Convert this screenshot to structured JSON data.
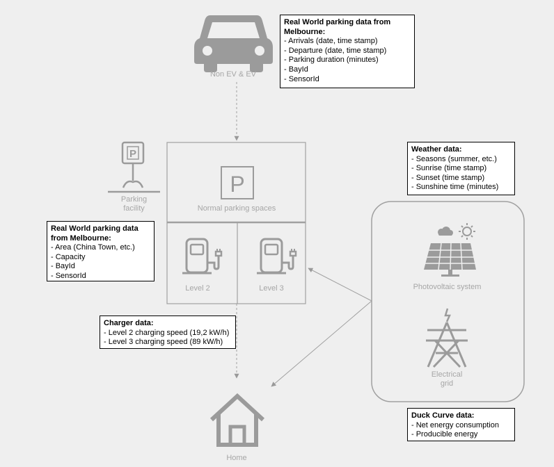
{
  "nodes": {
    "car_label": "Non EV & EV",
    "parking_facility_label": "Parking\nfacility",
    "normal_parking_label": "Normal parking spaces",
    "level2_label": "Level 2",
    "level3_label": "Level 3",
    "pv_label": "Photovoltaic system",
    "grid_label": "Electrical\ngrid",
    "home_label": "Home"
  },
  "boxes": {
    "parking_data_top": {
      "title": "Real World parking data from Melbourne:",
      "items": [
        "- Arrivals (date, time stamp)",
        "- Departure (date, time stamp)",
        "- Parking duration (minutes)",
        "- BayId",
        "- SensorId"
      ]
    },
    "weather": {
      "title": "Weather data:",
      "items": [
        "- Seasons (summer, etc.)",
        "- Sunrise (time stamp)",
        "- Sunset (time stamp)",
        "- Sunshine time (minutes)"
      ]
    },
    "parking_data_left": {
      "title": "Real World parking data from Melbourne:",
      "items": [
        "- Area (China Town, etc.)",
        "- Capacity",
        "- BayId",
        "- SensorId"
      ]
    },
    "charger": {
      "title": "Charger data:",
      "items": [
        "- Level 2 charging speed (19,2 kW/h)",
        "- Level 3 charging speed (89 kW/h)"
      ]
    },
    "duck": {
      "title": "Duck Curve data:",
      "items": [
        "- Net energy consumption",
        "- Producible energy"
      ]
    }
  },
  "colors": {
    "background": "#efefef",
    "icon_gray": "#9b9b9b",
    "line_gray": "#a0a0a0"
  }
}
